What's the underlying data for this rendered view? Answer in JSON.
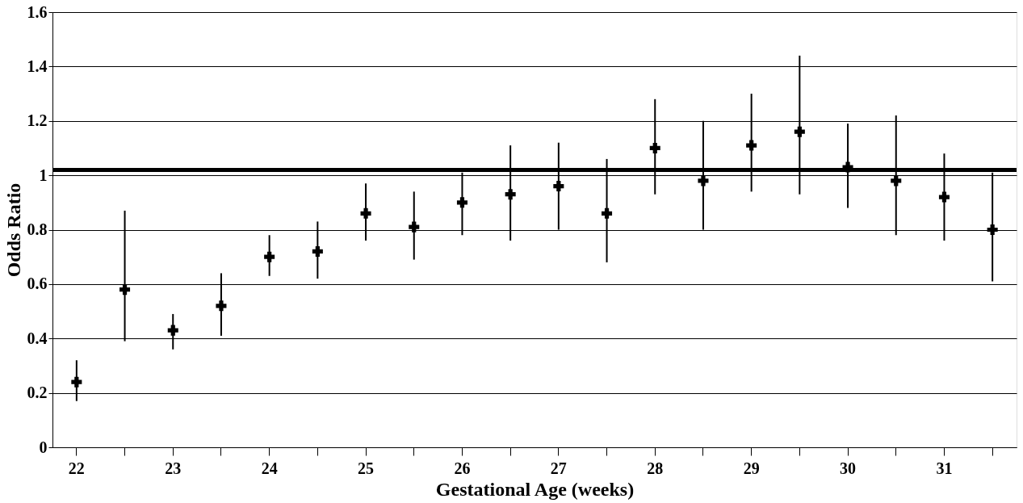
{
  "chart_data": {
    "type": "scatter",
    "xlabel": "Gestational Age (weeks)",
    "ylabel": "Odds Ratio",
    "categories": [
      "22",
      null,
      "23",
      null,
      "24",
      null,
      "25",
      null,
      "26",
      null,
      "27",
      null,
      "28",
      null,
      "29",
      null,
      "30",
      null,
      "31",
      null
    ],
    "series": [
      {
        "color": "#000000",
        "values": [
          0.24,
          0.58,
          0.43,
          0.52,
          0.7,
          0.72,
          0.86,
          0.81,
          0.9,
          0.93,
          0.96,
          0.86,
          1.1,
          0.98,
          1.11,
          1.16,
          1.03,
          0.98,
          0.92,
          0.8
        ],
        "errors": [
          [
            0.17,
            0.32
          ],
          [
            0.39,
            0.87
          ],
          [
            0.36,
            0.49
          ],
          [
            0.41,
            0.64
          ],
          [
            0.63,
            0.78
          ],
          [
            0.62,
            0.83
          ],
          [
            0.76,
            0.97
          ],
          [
            0.69,
            0.94
          ],
          [
            0.78,
            1.01
          ],
          [
            0.76,
            1.11
          ],
          [
            0.8,
            1.12
          ],
          [
            0.68,
            1.06
          ],
          [
            0.93,
            1.28
          ],
          [
            0.8,
            1.2
          ],
          [
            0.94,
            1.3
          ],
          [
            0.93,
            1.44
          ],
          [
            0.88,
            1.19
          ],
          [
            0.78,
            1.22
          ],
          [
            0.76,
            1.08
          ],
          [
            0.61,
            1.01
          ]
        ]
      }
    ],
    "ylim": [
      0,
      1.6
    ],
    "yticks": [
      0,
      0.2,
      0.4,
      0.6,
      0.8,
      1,
      1.2,
      1.4,
      1.6
    ],
    "grid": "y",
    "marker": "cross",
    "ref_lines": [
      {
        "axis": "y",
        "value": 1.02,
        "color": "#000000",
        "line_style": "solid"
      }
    ]
  }
}
